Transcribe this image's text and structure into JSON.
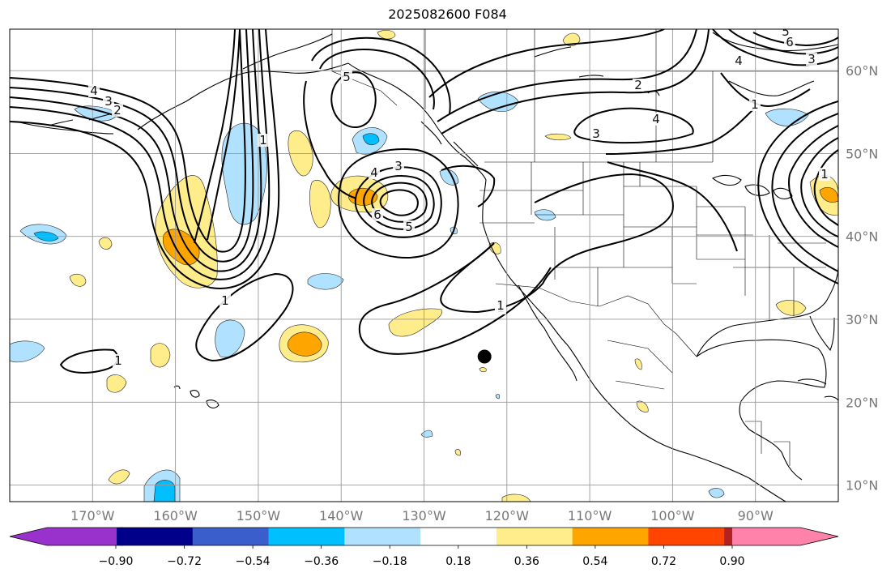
{
  "title": "2025082600 F084",
  "map": {
    "lon_range": [
      -180,
      -80
    ],
    "lat_range": [
      8,
      65
    ],
    "lon_ticks": [
      {
        "value": -170,
        "label": "170°W"
      },
      {
        "value": -160,
        "label": "160°W"
      },
      {
        "value": -150,
        "label": "150°W"
      },
      {
        "value": -140,
        "label": "140°W"
      },
      {
        "value": -130,
        "label": "130°W"
      },
      {
        "value": -120,
        "label": "120°W"
      },
      {
        "value": -110,
        "label": "110°W"
      },
      {
        "value": -100,
        "label": "100°W"
      },
      {
        "value": -90,
        "label": "90°W"
      }
    ],
    "lat_ticks": [
      {
        "value": 60,
        "label": "60°N"
      },
      {
        "value": 50,
        "label": "50°N"
      },
      {
        "value": 40,
        "label": "40°N"
      },
      {
        "value": 30,
        "label": "30°N"
      },
      {
        "value": 20,
        "label": "20°N"
      },
      {
        "value": 10,
        "label": "10°N"
      }
    ],
    "grid": true,
    "marker": {
      "lon": -122.7,
      "lat": 25.5,
      "color": "#000000"
    },
    "contour_labels": [
      "4",
      "3",
      "2",
      "1",
      "3",
      "4",
      "5",
      "6",
      "5",
      "1",
      "2",
      "4",
      "3",
      "1",
      "5",
      "4",
      "3",
      "6",
      "1",
      "1",
      "1",
      "1"
    ]
  },
  "colorbar": {
    "colors": [
      "#9932cc",
      "#00008b",
      "#3a5fcd",
      "#00bfff",
      "#b0e2ff",
      "#ffffff",
      "#ffec8b",
      "#ffa500",
      "#ff4500",
      "#b22222",
      "#ff82ab"
    ],
    "tick_labels": [
      "−0.90",
      "−0.72",
      "−0.54",
      "−0.36",
      "−0.18",
      "0.18",
      "0.36",
      "0.54",
      "0.72",
      "0.90"
    ]
  }
}
